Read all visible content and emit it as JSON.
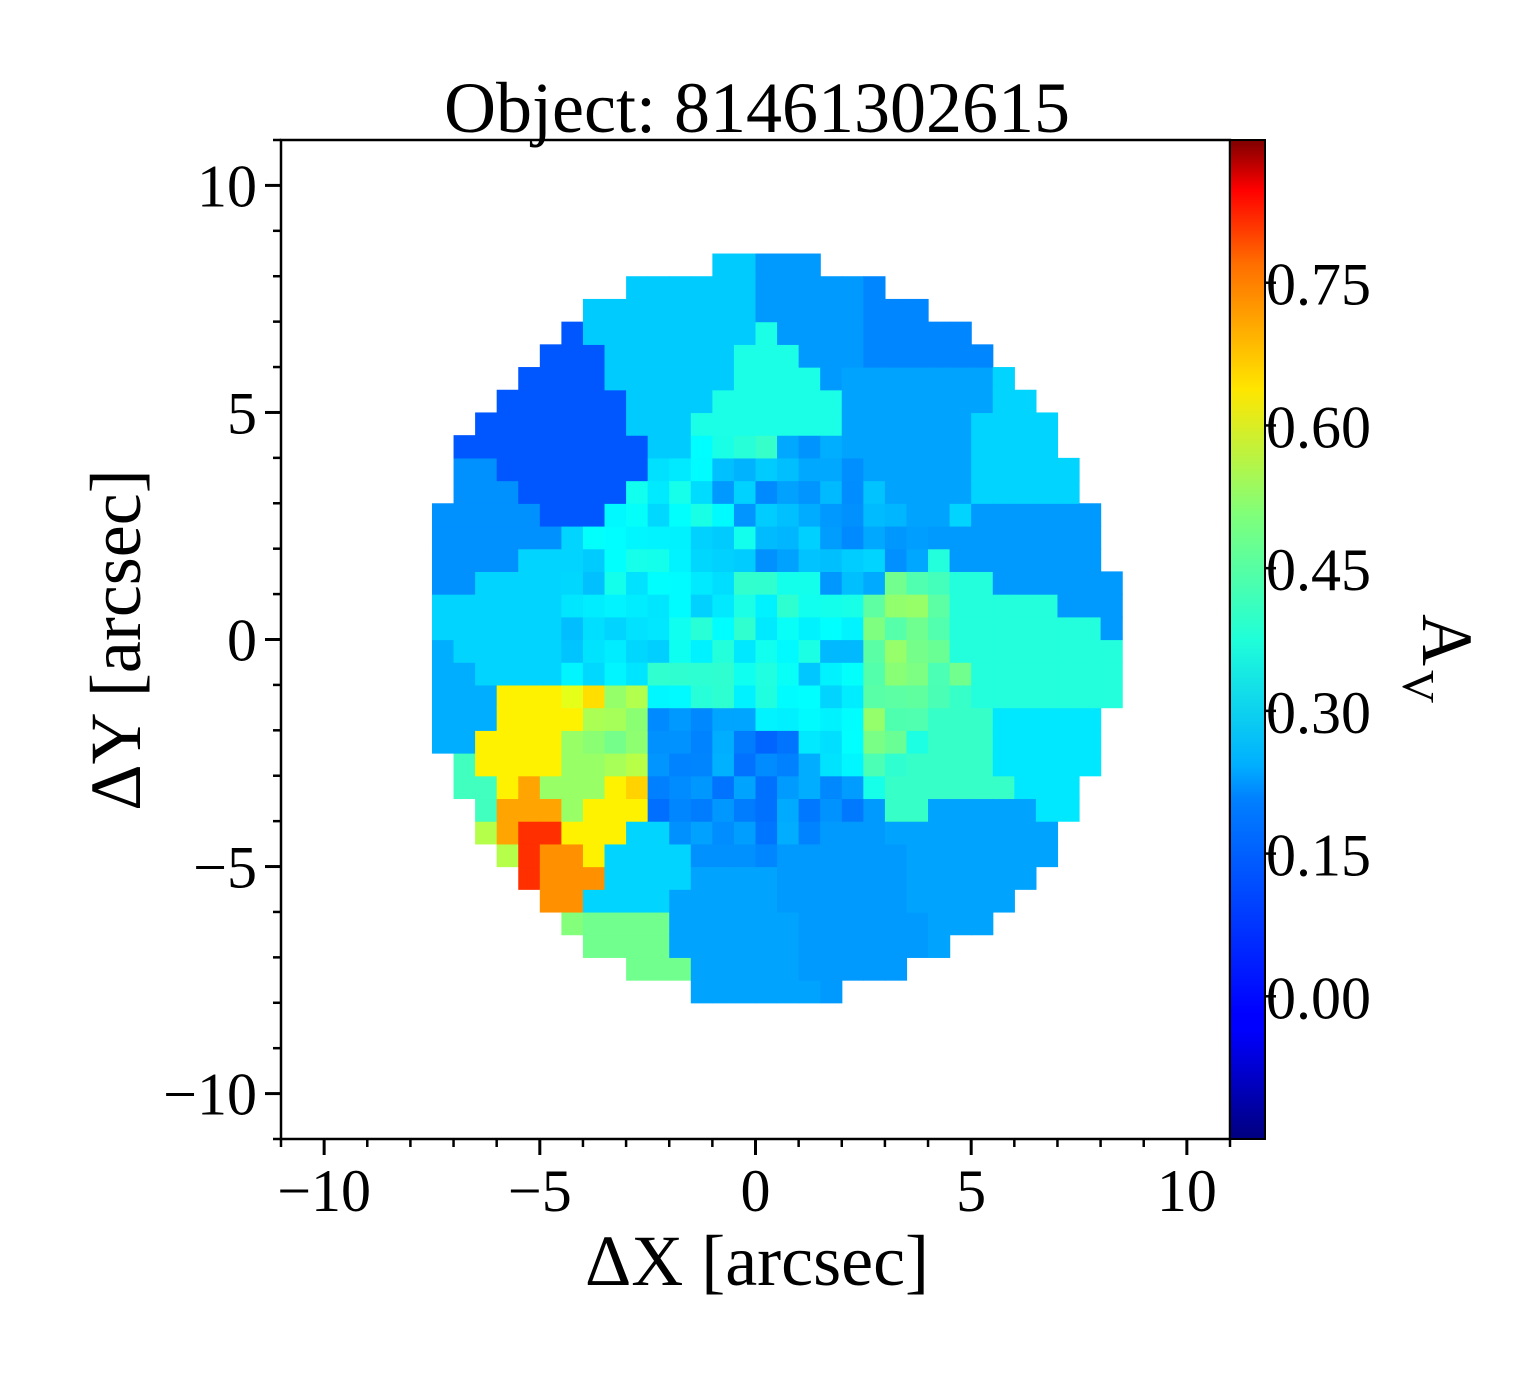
{
  "chart_data": {
    "type": "heatmap",
    "title": "Object: 81461302615",
    "xlabel": "ΔX [arcsec]",
    "ylabel": "ΔY [arcsec]",
    "colorbar_label": "A",
    "colorbar_label_subscript": "V",
    "xlim": [
      -11,
      11
    ],
    "ylim": [
      -11,
      11
    ],
    "xticks": [
      -10,
      -5,
      0,
      5,
      10
    ],
    "yticks": [
      -10,
      -5,
      0,
      5,
      10
    ],
    "xtick_labels": [
      "−10",
      "−5",
      "0",
      "5",
      "10"
    ],
    "ytick_labels": [
      "−10",
      "−5",
      "0",
      "5",
      "10"
    ],
    "colorbar": {
      "colormap": "jet",
      "vmin": -0.15,
      "vmax": 0.9,
      "ticks": [
        0.0,
        0.15,
        0.3,
        0.45,
        0.6,
        0.75
      ],
      "tick_labels": [
        "0.00",
        "0.15",
        "0.30",
        "0.45",
        "0.60",
        "0.75"
      ]
    },
    "map_extent": {
      "center": [
        0.3,
        0.2
      ],
      "semi_axis_x": 8.0,
      "semi_axis_y": 8.2,
      "rotation_deg": 30
    },
    "background_value": 0.2,
    "regions": [
      {
        "x": 0.0,
        "y": 0.0,
        "value": 0.26
      },
      {
        "x": -1.5,
        "y": 1.5,
        "value": 0.23
      },
      {
        "x": 1.5,
        "y": -1.5,
        "value": 0.21
      },
      {
        "x": -5.0,
        "y": 4.5,
        "value": 0.07
      },
      {
        "x": -6.5,
        "y": 2.5,
        "value": 0.13
      },
      {
        "x": -5.5,
        "y": 0.5,
        "value": 0.2
      },
      {
        "x": -7.5,
        "y": -1.5,
        "value": 0.16
      },
      {
        "x": -1.5,
        "y": 6.5,
        "value": 0.19
      },
      {
        "x": 1.5,
        "y": 7.0,
        "value": 0.14
      },
      {
        "x": 3.5,
        "y": 7.0,
        "value": 0.12
      },
      {
        "x": 0.3,
        "y": 5.5,
        "value": 0.27
      },
      {
        "x": 3.5,
        "y": 5.5,
        "value": 0.15
      },
      {
        "x": 7.0,
        "y": 4.5,
        "value": 0.2
      },
      {
        "x": 7.5,
        "y": 2.0,
        "value": 0.14
      },
      {
        "x": 6.5,
        "y": -0.5,
        "value": 0.28
      },
      {
        "x": 4.5,
        "y": -2.5,
        "value": 0.3
      },
      {
        "x": 3.5,
        "y": -1.5,
        "value": 0.36
      },
      {
        "x": 6.5,
        "y": -2.0,
        "value": 0.22
      },
      {
        "x": 5.0,
        "y": -4.5,
        "value": 0.15
      },
      {
        "x": 2.0,
        "y": -5.5,
        "value": 0.14
      },
      {
        "x": -0.5,
        "y": -6.5,
        "value": 0.15
      },
      {
        "x": -3.0,
        "y": -5.0,
        "value": 0.2
      },
      {
        "x": -3.0,
        "y": -7.0,
        "value": 0.36
      },
      {
        "x": -5.0,
        "y": -7.0,
        "value": 0.38
      },
      {
        "x": -6.5,
        "y": -5.2,
        "value": 0.43
      },
      {
        "x": -7.2,
        "y": -3.5,
        "value": 0.31
      },
      {
        "x": -5.2,
        "y": -2.6,
        "value": 0.52
      },
      {
        "x": -3.8,
        "y": -4.3,
        "value": 0.52
      },
      {
        "x": -4.5,
        "y": -3.2,
        "value": 0.4
      },
      {
        "x": -5.0,
        "y": -3.8,
        "value": 0.6
      },
      {
        "x": -4.2,
        "y": -4.7,
        "value": 0.62
      },
      {
        "x": -4.8,
        "y": -4.2,
        "value": 0.72
      },
      {
        "x": 0.5,
        "y": -3.0,
        "value": 0.12
      },
      {
        "x": -1.0,
        "y": -3.5,
        "value": 0.13
      },
      {
        "x": 1.0,
        "y": 3.0,
        "value": 0.16
      }
    ]
  }
}
